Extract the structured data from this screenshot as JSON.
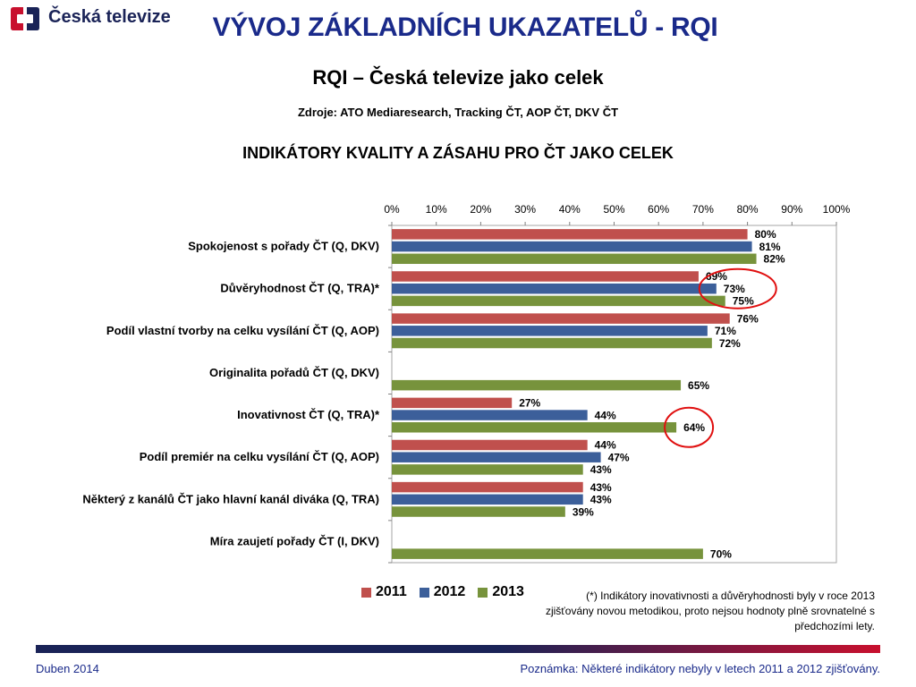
{
  "header": {
    "logo_text": "Česká televize",
    "title": "VÝVOJ ZÁKLADNÍCH UKAZATELŮ - RQI",
    "subtitle": "RQI – Česká televize jako celek",
    "sources": "Zdroje: ATO Mediaresearch, Tracking ČT, AOP ČT, DKV ČT"
  },
  "chart_title": "INDIKÁTORY KVALITY A ZÁSAHU PRO ČT JAKO CELEK",
  "footnote": "(*) Indikátory inovativnosti a důvěryhodnosti byly v roce 2013 zjišťovány novou metodikou, proto nejsou hodnoty plně srovnatelné s předchozími lety.",
  "footer": {
    "date": "Duben 2014",
    "note": "Poznámka: Některé indikátory nebyly v letech 2011 a 2012 zjišťovány."
  },
  "colors": {
    "s2011": "#c0504d",
    "s2012": "#3c5f9a",
    "s2013": "#77933c",
    "title": "#1a2a8a",
    "brand_red": "#c8102e",
    "brand_navy": "#1a2357"
  },
  "chart_data": {
    "type": "bar",
    "orientation": "horizontal",
    "title": "INDIKÁTORY KVALITY A ZÁSAHU PRO ČT JAKO CELEK",
    "categories": [
      "Spokojenost s pořady ČT (Q, DKV)",
      "Důvěryhodnost ČT (Q, TRA)*",
      "Podíl vlastní tvorby na celku vysílání ČT (Q, AOP)",
      "Originalita pořadů ČT (Q, DKV)",
      "Inovativnost ČT (Q, TRA)*",
      "Podíl premiér na celku vysílání ČT (Q, AOP)",
      "Některý z kanálů ČT jako hlavní kanál diváka (Q, TRA)",
      "Míra zaujetí pořady ČT (I, DKV)"
    ],
    "series": [
      {
        "name": "2011",
        "values": [
          80,
          69,
          76,
          null,
          27,
          44,
          43,
          null
        ]
      },
      {
        "name": "2012",
        "values": [
          81,
          73,
          71,
          null,
          44,
          47,
          43,
          null
        ]
      },
      {
        "name": "2013",
        "values": [
          82,
          75,
          72,
          65,
          64,
          43,
          39,
          70
        ]
      }
    ],
    "xlim": [
      0,
      100
    ],
    "x_ticks": [
      "0%",
      "10%",
      "20%",
      "30%",
      "40%",
      "50%",
      "60%",
      "70%",
      "80%",
      "90%",
      "100%"
    ],
    "value_suffix": "%",
    "highlighted": [
      {
        "category": "Důvěryhodnost ČT (Q, TRA)*",
        "series": [
          "2011",
          "2012",
          "2013"
        ]
      },
      {
        "category": "Inovativnost ČT (Q, TRA)*",
        "series": [
          "2013"
        ]
      }
    ],
    "grid": false,
    "legend": "bottom"
  }
}
